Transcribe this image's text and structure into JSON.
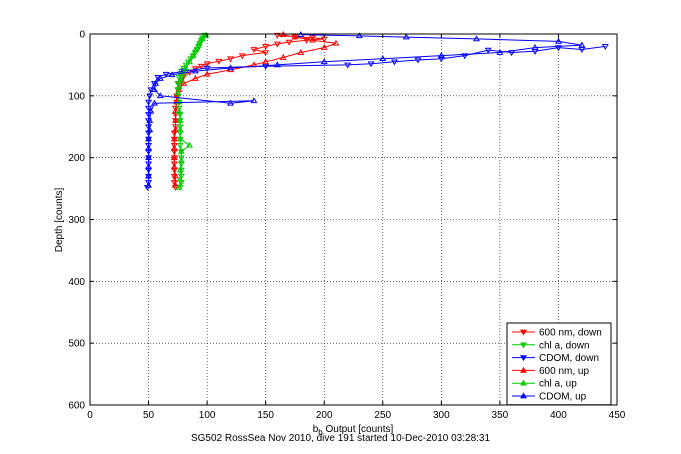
{
  "caption": "SG502 RossSea Nov 2010, dive 191 started 10-Dec-2010 03:28:31",
  "chart_data": {
    "type": "scatter",
    "xlabel_main": "b",
    "xlabel_sub": "b",
    "xlabel_rest": " Output [counts]",
    "ylabel": "Depth [counts]",
    "xlim": [
      0,
      450
    ],
    "ylim": [
      0,
      600
    ],
    "y_reversed": true,
    "grid": true,
    "grid_style": "dotted",
    "legend_position": "bottom-right",
    "x_ticks": [
      0,
      50,
      100,
      150,
      200,
      250,
      300,
      350,
      400,
      450
    ],
    "y_ticks": [
      0,
      100,
      200,
      300,
      400,
      500,
      600
    ],
    "series": [
      {
        "name": "600 nm, down",
        "color": "#ff0000",
        "marker": "down-triangle",
        "line": true,
        "points": [
          [
            160,
            2
          ],
          [
            175,
            4
          ],
          [
            190,
            6
          ],
          [
            200,
            8
          ],
          [
            185,
            10
          ],
          [
            170,
            13
          ],
          [
            160,
            16
          ],
          [
            150,
            20
          ],
          [
            140,
            25
          ],
          [
            150,
            30
          ],
          [
            130,
            35
          ],
          [
            120,
            40
          ],
          [
            110,
            44
          ],
          [
            100,
            48
          ],
          [
            95,
            52
          ],
          [
            90,
            56
          ],
          [
            85,
            62
          ],
          [
            80,
            68
          ],
          [
            78,
            75
          ],
          [
            76,
            80
          ],
          [
            75,
            90
          ],
          [
            74,
            100
          ],
          [
            74,
            110
          ],
          [
            73,
            120
          ],
          [
            73,
            130
          ],
          [
            73,
            140
          ],
          [
            73,
            150
          ],
          [
            72,
            160
          ],
          [
            72,
            170
          ],
          [
            72,
            180
          ],
          [
            72,
            190
          ],
          [
            72,
            200
          ],
          [
            72,
            210
          ],
          [
            72,
            220
          ],
          [
            72,
            230
          ],
          [
            72,
            240
          ],
          [
            73,
            248
          ]
        ]
      },
      {
        "name": "chl a, down",
        "color": "#00cc00",
        "marker": "down-triangle",
        "line": true,
        "points": [
          [
            98,
            2
          ],
          [
            96,
            6
          ],
          [
            95,
            10
          ],
          [
            94,
            15
          ],
          [
            93,
            20
          ],
          [
            92,
            25
          ],
          [
            90,
            30
          ],
          [
            88,
            35
          ],
          [
            86,
            40
          ],
          [
            84,
            45
          ],
          [
            82,
            50
          ],
          [
            80,
            55
          ],
          [
            78,
            60
          ],
          [
            77,
            65
          ],
          [
            76,
            70
          ],
          [
            75,
            80
          ],
          [
            75,
            90
          ],
          [
            75,
            100
          ],
          [
            76,
            110
          ],
          [
            76,
            120
          ],
          [
            77,
            130
          ],
          [
            77,
            140
          ],
          [
            77,
            150
          ],
          [
            77,
            160
          ],
          [
            77,
            170
          ],
          [
            77,
            180
          ],
          [
            78,
            190
          ],
          [
            78,
            200
          ],
          [
            78,
            210
          ],
          [
            78,
            220
          ],
          [
            78,
            230
          ],
          [
            78,
            240
          ],
          [
            77,
            248
          ]
        ]
      },
      {
        "name": "CDOM, down",
        "color": "#0000ff",
        "marker": "down-triangle",
        "line": true,
        "points": [
          [
            440,
            20
          ],
          [
            420,
            25
          ],
          [
            400,
            22
          ],
          [
            380,
            28
          ],
          [
            360,
            30
          ],
          [
            340,
            26
          ],
          [
            320,
            35
          ],
          [
            300,
            40
          ],
          [
            280,
            42
          ],
          [
            260,
            45
          ],
          [
            240,
            48
          ],
          [
            220,
            50
          ],
          [
            150,
            52
          ],
          [
            100,
            55
          ],
          [
            80,
            60
          ],
          [
            65,
            65
          ],
          [
            58,
            70
          ],
          [
            55,
            80
          ],
          [
            52,
            90
          ],
          [
            51,
            100
          ],
          [
            50,
            110
          ],
          [
            50,
            120
          ],
          [
            50,
            130
          ],
          [
            50,
            140
          ],
          [
            50,
            150
          ],
          [
            50,
            160
          ],
          [
            50,
            170
          ],
          [
            50,
            180
          ],
          [
            50,
            190
          ],
          [
            50,
            200
          ],
          [
            50,
            210
          ],
          [
            50,
            220
          ],
          [
            50,
            230
          ],
          [
            50,
            240
          ],
          [
            49,
            248
          ]
        ]
      },
      {
        "name": "600 nm, up",
        "color": "#ff0000",
        "marker": "up-triangle",
        "line": true,
        "points": [
          [
            73,
            245
          ],
          [
            73,
            230
          ],
          [
            72,
            215
          ],
          [
            72,
            200
          ],
          [
            72,
            185
          ],
          [
            72,
            170
          ],
          [
            73,
            155
          ],
          [
            73,
            140
          ],
          [
            73,
            125
          ],
          [
            74,
            110
          ],
          [
            74,
            100
          ],
          [
            76,
            90
          ],
          [
            80,
            80
          ],
          [
            90,
            72
          ],
          [
            100,
            65
          ],
          [
            120,
            58
          ],
          [
            140,
            50
          ],
          [
            150,
            45
          ],
          [
            165,
            38
          ],
          [
            180,
            30
          ],
          [
            200,
            22
          ],
          [
            210,
            15
          ],
          [
            190,
            10
          ],
          [
            175,
            5
          ],
          [
            165,
            1
          ]
        ]
      },
      {
        "name": "chl a, up",
        "color": "#00cc00",
        "marker": "up-triangle",
        "line": true,
        "points": [
          [
            76,
            248
          ],
          [
            77,
            235
          ],
          [
            77,
            220
          ],
          [
            78,
            205
          ],
          [
            78,
            190
          ],
          [
            85,
            180
          ],
          [
            77,
            170
          ],
          [
            77,
            155
          ],
          [
            77,
            140
          ],
          [
            76,
            125
          ],
          [
            76,
            110
          ],
          [
            75,
            95
          ],
          [
            76,
            85
          ],
          [
            78,
            75
          ],
          [
            80,
            65
          ],
          [
            82,
            55
          ],
          [
            85,
            45
          ],
          [
            88,
            35
          ],
          [
            90,
            25
          ],
          [
            93,
            15
          ],
          [
            96,
            8
          ],
          [
            99,
            2
          ]
        ]
      },
      {
        "name": "CDOM, up",
        "color": "#0000ff",
        "marker": "up-triangle",
        "line": true,
        "points": [
          [
            50,
            245
          ],
          [
            50,
            230
          ],
          [
            50,
            215
          ],
          [
            50,
            200
          ],
          [
            50,
            185
          ],
          [
            50,
            170
          ],
          [
            51,
            155
          ],
          [
            51,
            140
          ],
          [
            52,
            125
          ],
          [
            55,
            112
          ],
          [
            140,
            108
          ],
          [
            120,
            112
          ],
          [
            60,
            100
          ],
          [
            55,
            90
          ],
          [
            56,
            80
          ],
          [
            60,
            72
          ],
          [
            70,
            66
          ],
          [
            90,
            60
          ],
          [
            120,
            55
          ],
          [
            160,
            50
          ],
          [
            200,
            45
          ],
          [
            250,
            40
          ],
          [
            300,
            35
          ],
          [
            350,
            30
          ],
          [
            380,
            22
          ],
          [
            420,
            18
          ],
          [
            400,
            12
          ],
          [
            330,
            8
          ],
          [
            270,
            5
          ],
          [
            230,
            3
          ],
          [
            180,
            1
          ]
        ]
      }
    ]
  }
}
